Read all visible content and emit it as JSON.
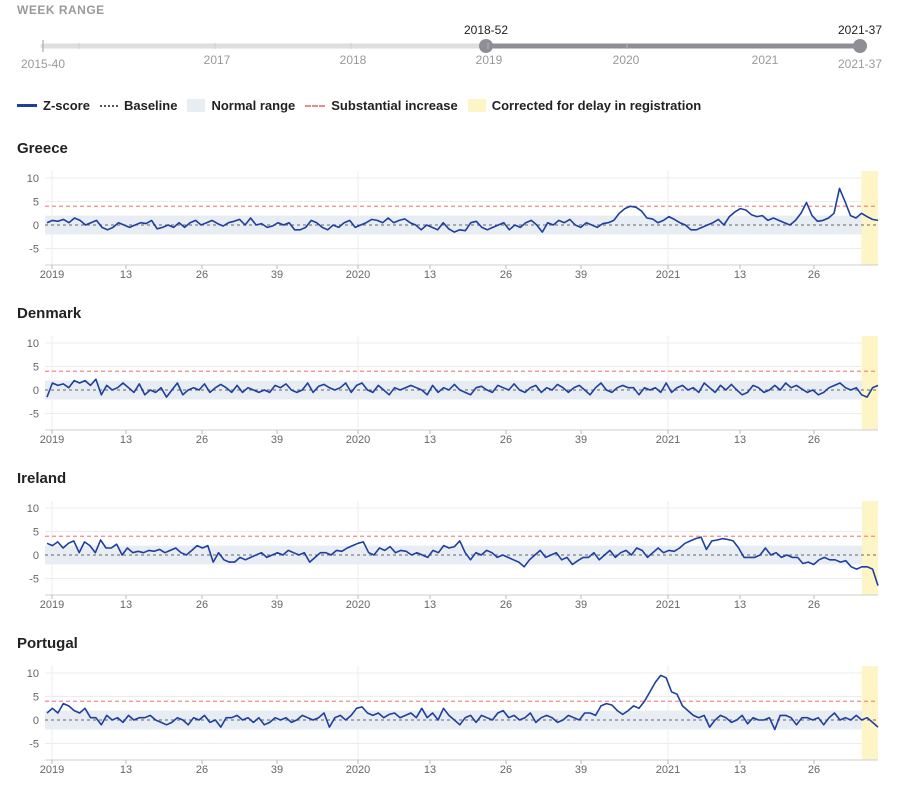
{
  "week_range": {
    "title": "WEEK RANGE",
    "start_label": "2015-40",
    "end_label": "2021-37",
    "selected_start": "2018-52",
    "selected_end": "2021-37",
    "year_labels": [
      "2017",
      "2018",
      "2019",
      "2020",
      "2021"
    ]
  },
  "legend": {
    "zscore": "Z-score",
    "baseline": "Baseline",
    "normal_range": "Normal range",
    "substantial_increase": "Substantial increase",
    "corrected": "Corrected for delay in registration"
  },
  "colors": {
    "line": "#1d3f9e",
    "normal_range": "#e8ecf3",
    "substantial": "#ef8a8a",
    "corrected": "#fdf5c6",
    "slider_active": "#8e8e96"
  },
  "chart_data": [
    {
      "type": "line",
      "title": "Greece",
      "ylim": [
        -8.5,
        11.5
      ],
      "yticks": [
        10,
        5,
        0,
        -5
      ],
      "xticks": [
        "2019",
        "13",
        "26",
        "39",
        "2020",
        "13",
        "26",
        "39",
        "2021",
        "13",
        "26"
      ],
      "baseline": 0,
      "normal_range": [
        -2,
        2
      ],
      "substantial_increase": 4,
      "corrected_weeks": 3,
      "values": [
        0.5,
        1,
        0.8,
        1.2,
        0.5,
        1.5,
        1,
        0,
        0.5,
        1,
        -0.5,
        -1,
        -0.5,
        0.5,
        0,
        -0.5,
        0,
        0.5,
        0.3,
        1,
        -0.8,
        -0.5,
        0,
        -0.5,
        0.5,
        -0.5,
        0.5,
        1,
        0,
        0.5,
        1,
        0.3,
        -0.2,
        0.5,
        0.8,
        1.2,
        0,
        1.5,
        0,
        0.3,
        -0.5,
        -0.2,
        0.5,
        0,
        0.5,
        -1,
        -1,
        -0.5,
        1,
        0.5,
        -0.5,
        -1,
        0,
        -0.5,
        0.5,
        1,
        -0.5,
        0,
        0.5,
        1.2,
        1,
        0.5,
        1.5,
        0.5,
        1,
        1.3,
        0.5,
        0,
        -1,
        0,
        -0.5,
        -1,
        0.5,
        -0.8,
        -1.5,
        -1,
        -1.2,
        0.5,
        0.8,
        -0.5,
        -1,
        -0.5,
        0,
        0.5,
        -1,
        0,
        -0.5,
        0.5,
        1,
        0,
        -1.5,
        0.5,
        0,
        1,
        0.5,
        1.2,
        0,
        -0.5,
        0.5,
        0,
        -0.5,
        0.3,
        0.5,
        1,
        2.5,
        3.5,
        4,
        3.8,
        3,
        1.5,
        1.3,
        0.5,
        1,
        1.8,
        1.2,
        0.5,
        0,
        -1,
        -1,
        -0.5,
        0,
        0.5,
        1.2,
        0,
        1.8,
        2.8,
        3.5,
        3.2,
        2.2,
        1.8,
        2,
        1,
        1.5,
        1,
        0.5,
        0,
        1,
        2.5,
        4.8,
        2,
        0.8,
        1,
        1.5,
        2.5,
        7.8,
        5,
        2,
        1.5,
        2.5,
        1.8,
        1.2,
        1
      ]
    },
    {
      "type": "line",
      "title": "Denmark",
      "ylim": [
        -8.5,
        11.5
      ],
      "yticks": [
        10,
        5,
        0,
        -5
      ],
      "xticks": [
        "2019",
        "13",
        "26",
        "39",
        "2020",
        "13",
        "26",
        "39",
        "2021",
        "13",
        "26"
      ],
      "baseline": 0,
      "normal_range": [
        -2,
        2
      ],
      "substantial_increase": 4,
      "corrected_weeks": 3,
      "values": [
        -1.5,
        1.5,
        1,
        1.3,
        0.5,
        2,
        1.5,
        2,
        1,
        2.3,
        -1,
        1,
        0,
        0.5,
        1.5,
        0.5,
        -0.5,
        1.3,
        -1,
        0,
        -0.5,
        0.5,
        -1.5,
        0,
        1.5,
        -1,
        0,
        0.5,
        0,
        1.3,
        -0.5,
        0.5,
        1.2,
        0.5,
        -0.5,
        1,
        -0.5,
        0.5,
        0,
        -0.5,
        0,
        -0.5,
        1,
        0.5,
        1.3,
        0,
        -0.5,
        0,
        1.5,
        -0.5,
        0.8,
        1.2,
        0.5,
        0,
        0.5,
        1.5,
        -0.5,
        1,
        1.5,
        0,
        -0.5,
        1,
        0,
        -1,
        0.5,
        0,
        0.5,
        1,
        0.5,
        0,
        -1,
        1,
        -0.5,
        0.5,
        0,
        1.2,
        0,
        -0.5,
        -1,
        0.5,
        0.8,
        0,
        -0.5,
        1,
        0.5,
        0,
        1.3,
        0,
        -0.5,
        0.5,
        1,
        -0.5,
        0.5,
        0,
        1.2,
        0.5,
        -0.5,
        0.5,
        1,
        0,
        -1,
        0.5,
        1.5,
        0,
        -0.5,
        0.5,
        1,
        0.5,
        0.5,
        -1,
        0.5,
        0,
        0.5,
        -0.5,
        1.5,
        -0.5,
        0.5,
        1,
        0,
        0.5,
        -0.5,
        1.5,
        0.5,
        -0.5,
        1,
        0,
        1.2,
        0,
        -1,
        -0.5,
        1,
        0.5,
        -0.5,
        0,
        1,
        0,
        1.5,
        0.5,
        1,
        0.2,
        -0.5,
        0,
        -1,
        -0.5,
        0.5,
        1,
        1.5,
        0.5,
        0,
        0.5,
        -1,
        -1.5,
        0.5,
        1
      ]
    },
    {
      "type": "line",
      "title": "Ireland",
      "ylim": [
        -8.5,
        11.5
      ],
      "yticks": [
        10,
        5,
        0,
        -5
      ],
      "xticks": [
        "2019",
        "13",
        "26",
        "39",
        "2020",
        "13",
        "26",
        "39",
        "2021",
        "13",
        "26"
      ],
      "baseline": 0,
      "normal_range": [
        -2,
        2
      ],
      "substantial_increase": 4,
      "corrected_weeks": 3,
      "values": [
        2.5,
        2,
        2.8,
        1.5,
        2.5,
        3,
        0.5,
        2.8,
        2,
        0.5,
        3.2,
        1.5,
        1.5,
        2.3,
        0,
        1.5,
        0.5,
        0.8,
        0.5,
        1,
        0.8,
        1.2,
        0.5,
        1,
        1.5,
        0.5,
        0,
        1,
        2,
        1.5,
        2,
        -1.5,
        0.5,
        -1,
        -1.5,
        -1.5,
        -0.5,
        -1,
        -0.5,
        0,
        0.5,
        -0.5,
        0,
        0.5,
        0,
        1,
        0.5,
        0,
        0.5,
        -1.5,
        -0.5,
        0.5,
        0.5,
        0,
        1,
        0.8,
        1.5,
        2,
        2.5,
        2.8,
        0.5,
        0,
        1.5,
        1,
        1.8,
        0.5,
        1,
        0.8,
        0,
        0.5,
        0,
        -0.5,
        1,
        0.5,
        2,
        1.5,
        1.8,
        3,
        0.5,
        -1,
        0.5,
        0,
        1,
        0.5,
        -0.5,
        0,
        -0.5,
        -1,
        -1.5,
        -2.5,
        -1,
        0,
        1,
        -0.5,
        0,
        0.5,
        -1,
        -0.5,
        -2,
        -1.2,
        -0.5,
        -0.5,
        0.5,
        -1,
        0,
        1,
        -0.5,
        0.5,
        1,
        0,
        1.5,
        1,
        -0.5,
        0.5,
        1.5,
        0.5,
        1,
        0.8,
        1.5,
        2.5,
        3,
        3.5,
        3.8,
        1.2,
        3,
        3.2,
        3.5,
        3.3,
        3,
        1.5,
        -0.5,
        -0.5,
        -0.5,
        0,
        1.5,
        0,
        0.5,
        -0.5,
        0,
        -0.5,
        -0.5,
        -1.8,
        -1.5,
        -2,
        -1,
        -0.5,
        -1,
        -1,
        -1.5,
        -1.2,
        -2.5,
        -3,
        -2.5,
        -2.5,
        -3,
        -6.5
      ]
    },
    {
      "type": "line",
      "title": "Portugal",
      "ylim": [
        -8.5,
        11.5
      ],
      "yticks": [
        10,
        5,
        0,
        -5
      ],
      "xticks": [
        "2019",
        "13",
        "26",
        "39",
        "2020",
        "13",
        "26",
        "39",
        "2021",
        "13",
        "26"
      ],
      "baseline": 0,
      "normal_range": [
        -2,
        2
      ],
      "substantial_increase": 4,
      "corrected_weeks": 3,
      "values": [
        1.5,
        2.5,
        1.5,
        3.5,
        3,
        2,
        1.5,
        2.5,
        0.5,
        0.5,
        -1,
        1,
        0,
        0.5,
        -0.5,
        1,
        0,
        0.5,
        0.5,
        1,
        0,
        -0.5,
        -1,
        -0.5,
        0.5,
        0,
        -1,
        0.5,
        0,
        1,
        -0.5,
        0,
        -1.5,
        0.5,
        0.5,
        1,
        0,
        0.5,
        -0.5,
        0.5,
        -1,
        -0.5,
        0.5,
        0,
        0.5,
        -0.5,
        0,
        1,
        0.5,
        0,
        0.5,
        1.5,
        -1.5,
        0.5,
        1,
        0,
        1,
        2.5,
        2.8,
        1.5,
        1,
        1.5,
        0.5,
        1.2,
        1.5,
        0.5,
        1,
        1.5,
        0.5,
        2.5,
        0.5,
        1.5,
        0,
        2.5,
        1,
        0,
        -1,
        0.5,
        1,
        -0.5,
        1,
        0.5,
        0,
        1.5,
        2,
        0.5,
        1,
        0,
        0.5,
        1.5,
        -0.5,
        0.5,
        1,
        0.5,
        -0.5,
        0,
        1,
        0.5,
        0,
        1.5,
        1.5,
        1,
        3,
        3.5,
        3.2,
        2,
        1.2,
        2,
        3,
        2.5,
        4,
        6,
        8,
        9.5,
        9,
        6,
        5.5,
        3,
        2,
        1,
        0.5,
        1,
        -1.5,
        0,
        1,
        0.5,
        -0.5,
        0,
        1,
        -0.8,
        0.5,
        0,
        0,
        0.5,
        -2,
        1,
        1,
        0.5,
        -1,
        0.5,
        0.5,
        0,
        0.5,
        -1,
        0.5,
        1.5,
        0,
        0.5,
        0,
        1,
        0,
        0.5,
        -0.5,
        -1.5
      ]
    }
  ]
}
